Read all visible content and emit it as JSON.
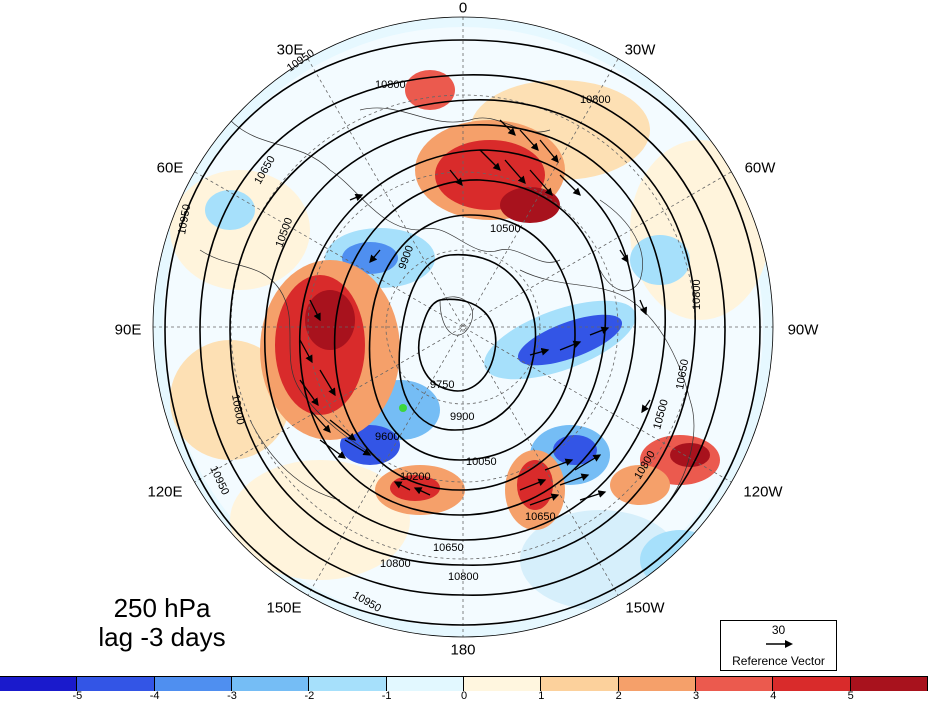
{
  "title": {
    "line1": "250 hPa",
    "line2": "lag -3 days"
  },
  "longitude_labels": [
    {
      "key": "lon_0",
      "text": "0"
    },
    {
      "key": "lon_30w",
      "text": "30W"
    },
    {
      "key": "lon_60w",
      "text": "60W"
    },
    {
      "key": "lon_90w",
      "text": "90W"
    },
    {
      "key": "lon_120w",
      "text": "120W"
    },
    {
      "key": "lon_150w",
      "text": "150W"
    },
    {
      "key": "lon_180",
      "text": "180"
    },
    {
      "key": "lon_150e",
      "text": "150E"
    },
    {
      "key": "lon_120e",
      "text": "120E"
    },
    {
      "key": "lon_90e",
      "text": "90E"
    },
    {
      "key": "lon_60e",
      "text": "60E"
    },
    {
      "key": "lon_30e",
      "text": "30E"
    }
  ],
  "contour_labels": [
    "10950",
    "10800",
    "10650",
    "10500",
    "10350",
    "10200",
    "10050",
    "9900",
    "9750",
    "9600"
  ],
  "reference_vector": {
    "value": "30",
    "label": "Reference Vector"
  },
  "colorbar": {
    "ticks": [
      "-5",
      "-4",
      "-3",
      "-2",
      "-1",
      "0",
      "1",
      "2",
      "3",
      "4",
      "5"
    ],
    "colors": [
      "#1a1acc",
      "#3355e6",
      "#4f8ff0",
      "#75bdf5",
      "#a6e0fb",
      "#e2f8ff",
      "#fff6df",
      "#fcd19c",
      "#f5a06a",
      "#eb5a4e",
      "#d92b2b",
      "#a8121d"
    ]
  },
  "colors": {
    "land_outline": "#333333",
    "contour": "#000000",
    "marker": "#3cd63c"
  }
}
